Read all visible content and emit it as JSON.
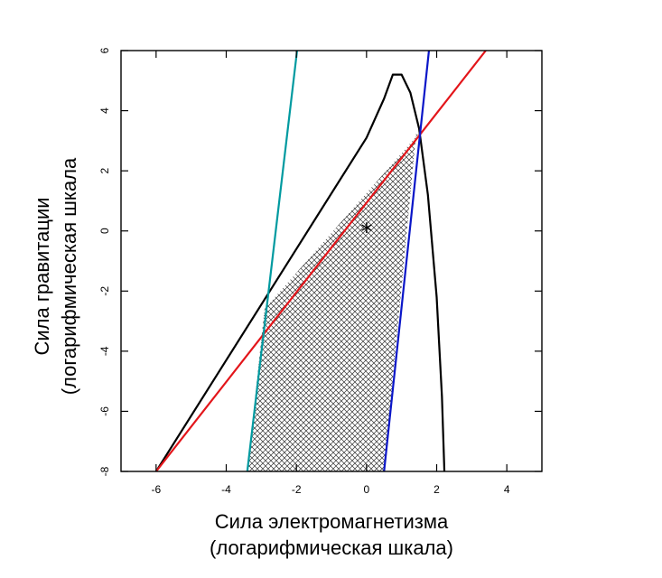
{
  "chart_data": {
    "type": "line",
    "title": "",
    "xlabel": "Сила электромагнетизма",
    "xlabel_sub": "(логарифмическая шкала)",
    "ylabel": "Сила гравитации",
    "ylabel_sub": "(логарифмическая шкала",
    "xlim": [
      -7,
      5
    ],
    "ylim": [
      -8,
      6
    ],
    "xticks": [
      -6,
      -4,
      -2,
      0,
      2,
      4
    ],
    "yticks": [
      -8,
      -6,
      -4,
      -2,
      0,
      2,
      4,
      6
    ],
    "xtick_labels": [
      "-6",
      "-4",
      "-2",
      "0",
      "2",
      "4"
    ],
    "ytick_labels": [
      "-8",
      "-6",
      "-4",
      "-2",
      "0",
      "2",
      "4",
      "6"
    ],
    "grid": false,
    "legend": "none",
    "series": [
      {
        "color": "#000000",
        "x": [
          -6.0,
          -4.0,
          -2.0,
          0.0,
          0.5,
          0.75,
          1.0,
          1.25,
          1.5,
          1.75,
          2.0,
          2.15,
          2.22
        ],
        "y": [
          -8.0,
          -4.3,
          -0.6,
          3.1,
          4.4,
          5.2,
          5.2,
          4.6,
          3.4,
          1.2,
          -2.2,
          -5.5,
          -8.0
        ]
      },
      {
        "color": "#e3151a",
        "x": [
          -6.0,
          3.4
        ],
        "y": [
          -8.0,
          6.0
        ]
      },
      {
        "color": "#0a16c8",
        "x": [
          0.5,
          1.78
        ],
        "y": [
          -8.0,
          6.0
        ]
      },
      {
        "color": "#009aa0",
        "x": [
          -3.4,
          -1.98
        ],
        "y": [
          -8.0,
          6.0
        ]
      }
    ],
    "hatched_region": {
      "x": [
        -3.4,
        -2.91,
        1.54,
        1.42,
        0.5
      ],
      "y": [
        -8.0,
        -2.6,
        3.3,
        3.3,
        -8.0
      ]
    },
    "marker": {
      "symbol": "*",
      "x": 0,
      "y": 0
    }
  }
}
